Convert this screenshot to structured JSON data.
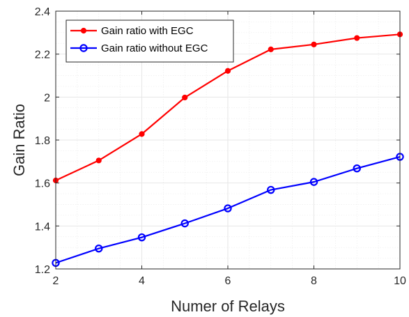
{
  "chart_data": {
    "type": "line",
    "title": "",
    "xlabel": "Numer of Relays",
    "ylabel": "Gain Ratio",
    "xlim": [
      2,
      10
    ],
    "ylim": [
      1.2,
      2.4
    ],
    "xticks": [
      2,
      4,
      6,
      8,
      10
    ],
    "yticks": [
      1.2,
      1.4,
      1.6,
      1.8,
      2,
      2.2,
      2.4
    ],
    "xtick_labels": [
      "2",
      "4",
      "6",
      "8",
      "10"
    ],
    "ytick_labels": [
      "1.2",
      "1.4",
      "1.6",
      "1.8",
      "2",
      "2.2",
      "2.4"
    ],
    "grid": true,
    "minor_grid": true,
    "legend_position": "top-left",
    "x": [
      2,
      3,
      4,
      5,
      6,
      7,
      8,
      9,
      10
    ],
    "series": [
      {
        "name": "Gain ratio with EGC",
        "color": "#ff0000",
        "marker": "filled-circle",
        "values": [
          1.612,
          1.705,
          1.828,
          1.998,
          2.122,
          2.222,
          2.245,
          2.275,
          2.292
        ]
      },
      {
        "name": "Gain ratio without EGC",
        "color": "#0000ff",
        "marker": "open-circle",
        "values": [
          1.228,
          1.295,
          1.347,
          1.412,
          1.482,
          1.568,
          1.605,
          1.668,
          1.722
        ]
      }
    ]
  }
}
